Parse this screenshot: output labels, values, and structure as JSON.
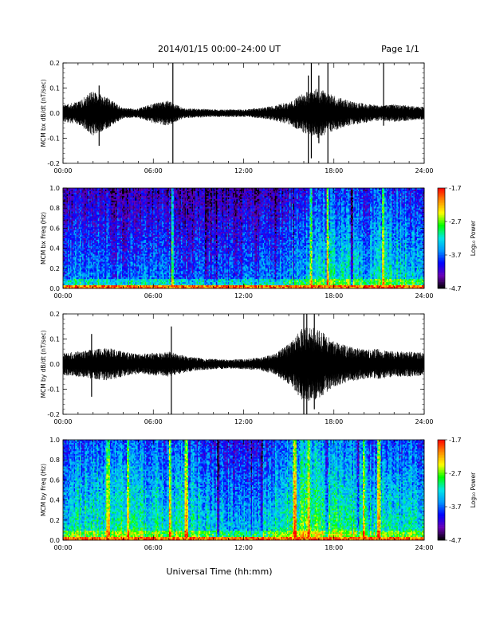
{
  "header": {
    "title": "2014/01/15  00:00–24:00 UT",
    "page": "Page 1/1"
  },
  "xaxis": {
    "label": "Universal Time (hh:mm)",
    "ticks": [
      "00:00",
      "06:00",
      "12:00",
      "18:00",
      "24:00"
    ]
  },
  "colorbar": {
    "label": "Log₁₀ Power",
    "ticks": [
      "-1.7",
      "-2.7",
      "-3.7",
      "-4.7"
    ],
    "range": [
      -4.7,
      -1.7
    ],
    "colormap": [
      "#000000",
      "#6a00b5",
      "#0000ff",
      "#0096ff",
      "#00e6e6",
      "#00ff00",
      "#ffff00",
      "#ff8c00",
      "#ff0000"
    ]
  },
  "chart_data": [
    {
      "type": "line",
      "ylabel": "MCM bx dB/dt (nT/sec)",
      "xlim": [
        0,
        24
      ],
      "ylim": [
        -0.2,
        0.2
      ],
      "yticks": [
        "0.2",
        "0.1",
        "0.0",
        "-0.1",
        "-0.2"
      ],
      "envelope": {
        "hours": [
          0,
          1,
          2,
          3,
          4,
          5,
          6,
          7,
          8,
          9,
          10,
          11,
          12,
          13,
          14,
          15,
          16,
          17,
          18,
          19,
          20,
          21,
          22,
          23,
          24
        ],
        "amplitude": [
          0.035,
          0.045,
          0.09,
          0.06,
          0.02,
          0.018,
          0.04,
          0.05,
          0.02,
          0.018,
          0.015,
          0.015,
          0.015,
          0.02,
          0.03,
          0.045,
          0.08,
          0.1,
          0.07,
          0.05,
          0.04,
          0.03,
          0.035,
          0.03,
          0.025
        ]
      },
      "spikes": [
        {
          "hour": 7.3,
          "min": -0.2,
          "max": 0.2
        },
        {
          "hour": 2.4,
          "min": -0.13,
          "max": 0.11
        },
        {
          "hour": 16.3,
          "min": -0.2,
          "max": 0.15
        },
        {
          "hour": 16.5,
          "min": -0.18,
          "max": 0.2
        },
        {
          "hour": 17.6,
          "min": -0.2,
          "max": 0.2
        },
        {
          "hour": 17.0,
          "min": -0.12,
          "max": 0.15
        },
        {
          "hour": 21.3,
          "min": -0.05,
          "max": 0.2
        }
      ]
    },
    {
      "type": "heatmap",
      "ylabel": "MCM bx Freq (Hz)",
      "xlim": [
        0,
        24
      ],
      "ylim": [
        0.0,
        1.0
      ],
      "yticks": [
        "1.0",
        "0.8",
        "0.6",
        "0.4",
        "0.2",
        "0.0"
      ],
      "zlim": [
        -4.7,
        -1.7
      ],
      "background_by_hour": {
        "hours": [
          0,
          2,
          4,
          6,
          8,
          10,
          12,
          14,
          16,
          18,
          20,
          22,
          24
        ],
        "level": [
          -3.8,
          -3.7,
          -3.9,
          -3.8,
          -3.9,
          -3.9,
          -3.9,
          -3.8,
          -3.5,
          -3.3,
          -3.5,
          -3.3,
          -3.6
        ]
      },
      "low_freq_band_level": -2.0,
      "bright_stripes_hours": [
        7.3,
        16.5,
        17.6,
        21.3
      ],
      "dark_stripes_hours": [
        9.5,
        10.2,
        14.1,
        15.3,
        19.2
      ]
    },
    {
      "type": "line",
      "ylabel": "MCM by dB/dt (nT/sec)",
      "xlim": [
        0,
        24
      ],
      "ylim": [
        -0.2,
        0.2
      ],
      "yticks": [
        "0.2",
        "0.1",
        "0.0",
        "-0.1",
        "-0.2"
      ],
      "envelope": {
        "hours": [
          0,
          1,
          2,
          3,
          4,
          5,
          6,
          7,
          8,
          9,
          10,
          11,
          12,
          13,
          14,
          15,
          16,
          17,
          18,
          19,
          20,
          21,
          22,
          23,
          24
        ],
        "amplitude": [
          0.045,
          0.05,
          0.06,
          0.065,
          0.05,
          0.04,
          0.045,
          0.05,
          0.035,
          0.025,
          0.02,
          0.018,
          0.02,
          0.025,
          0.04,
          0.08,
          0.15,
          0.14,
          0.09,
          0.07,
          0.06,
          0.06,
          0.05,
          0.05,
          0.045
        ]
      },
      "spikes": [
        {
          "hour": 7.2,
          "min": -0.2,
          "max": 0.15
        },
        {
          "hour": 16.0,
          "min": -0.2,
          "max": 0.2
        },
        {
          "hour": 16.2,
          "min": -0.2,
          "max": 0.2
        },
        {
          "hour": 16.7,
          "min": -0.18,
          "max": 0.2
        },
        {
          "hour": 1.9,
          "min": -0.13,
          "max": 0.12
        }
      ]
    },
    {
      "type": "heatmap",
      "ylabel": "MCM by Freq (Hz)",
      "xlim": [
        0,
        24
      ],
      "ylim": [
        0.0,
        1.0
      ],
      "yticks": [
        "1.0",
        "0.8",
        "0.6",
        "0.4",
        "0.2",
        "0.0"
      ],
      "zlim": [
        -4.7,
        -1.7
      ],
      "background_by_hour": {
        "hours": [
          0,
          2,
          4,
          6,
          8,
          10,
          12,
          14,
          16,
          18,
          20,
          22,
          24
        ],
        "level": [
          -3.4,
          -3.2,
          -3.2,
          -3.3,
          -3.3,
          -3.5,
          -3.6,
          -3.4,
          -3.0,
          -3.1,
          -3.3,
          -3.3,
          -3.4
        ]
      },
      "low_freq_band_level": -2.0,
      "bright_stripes_hours": [
        3.0,
        4.3,
        7.1,
        8.2,
        15.4,
        16.3,
        20.0,
        21.0
      ],
      "dark_stripes_hours": [
        10.3,
        12.5,
        13.2,
        17.5,
        19.6
      ]
    }
  ]
}
